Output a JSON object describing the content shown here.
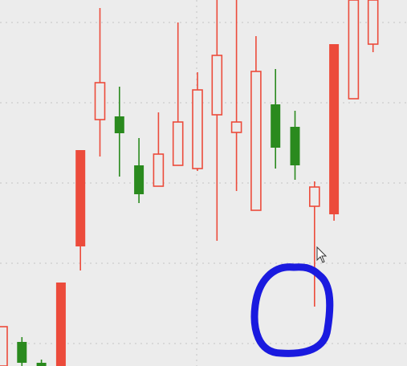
{
  "chart_data": {
    "type": "candlestick",
    "ylim": [
      0,
      456
    ],
    "open": [
      0,
      30,
      4,
      104,
      269,
      307,
      311,
      250,
      224,
      250,
      246,
      313,
      291,
      194,
      326,
      298,
      199,
      401,
      333,
      401
    ],
    "high": [
      49,
      36,
      8,
      104,
      269,
      446,
      348,
      284,
      316,
      428,
      366,
      456,
      456,
      411,
      370,
      318,
      230,
      401,
      456,
      456
    ],
    "low": [
      0,
      0,
      0,
      0,
      119,
      261,
      236,
      203,
      224,
      250,
      243,
      156,
      218,
      194,
      246,
      232,
      74,
      181,
      333,
      391
    ],
    "close": [
      49,
      4,
      0,
      0,
      149,
      353,
      290,
      214,
      264,
      304,
      344,
      387,
      304,
      367,
      272,
      250,
      223,
      189,
      456,
      456
    ],
    "colors": [
      "#ec4b3b",
      "#2a8a1e",
      "#2a8a1e",
      "#ec4b3b",
      "#ec4b3b",
      "#ec4b3b",
      "#2a8a1e",
      "#2a8a1e",
      "#ec4b3b",
      "#ec4b3b",
      "#ec4b3b",
      "#ec4b3b",
      "#ec4b3b",
      "#ec4b3b",
      "#2a8a1e",
      "#2a8a1e",
      "#ec4b3b",
      "#ec4b3b",
      "#ec4b3b",
      "#ec4b3b"
    ]
  }
}
